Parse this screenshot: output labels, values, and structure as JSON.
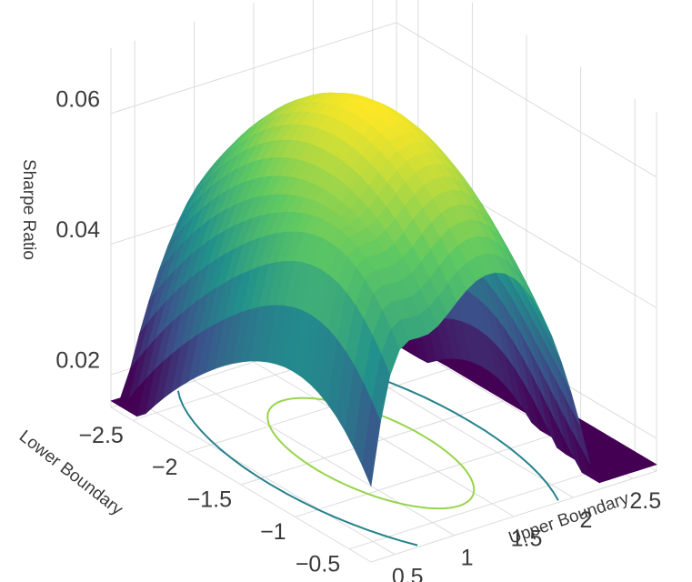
{
  "chart_data": {
    "type": "surface",
    "xlabel": "Lower Boundary",
    "ylabel": "Upper Boundary",
    "zlabel": "Sharpe Ratio",
    "x_ticks": [
      -2.5,
      -2,
      -1.5,
      -1,
      -0.5
    ],
    "x_tick_labels": [
      "−2.5",
      "−2",
      "−1.5",
      "−1",
      "−0.5"
    ],
    "y_ticks": [
      0.5,
      1,
      1.5,
      2,
      2.5
    ],
    "y_tick_labels": [
      "0.5",
      "1",
      "1.5",
      "2",
      "2.5"
    ],
    "z_ticks": [
      0.02,
      0.04,
      0.06
    ],
    "z_tick_labels": [
      "0.02",
      "0.04",
      "0.06"
    ],
    "xlim": [
      -2.7,
      -0.3
    ],
    "ylim": [
      0.3,
      2.7
    ],
    "zlim": [
      0.015,
      0.07
    ],
    "colorscale": "viridis",
    "colorscale_stops": [
      "#440154",
      "#3b528b",
      "#21918c",
      "#5ec962",
      "#fde725"
    ],
    "surface_peak": {
      "x": -1.4,
      "y": 1.3,
      "z": 0.068
    },
    "contours_on_floor": true,
    "grid": true,
    "legend": "none"
  }
}
